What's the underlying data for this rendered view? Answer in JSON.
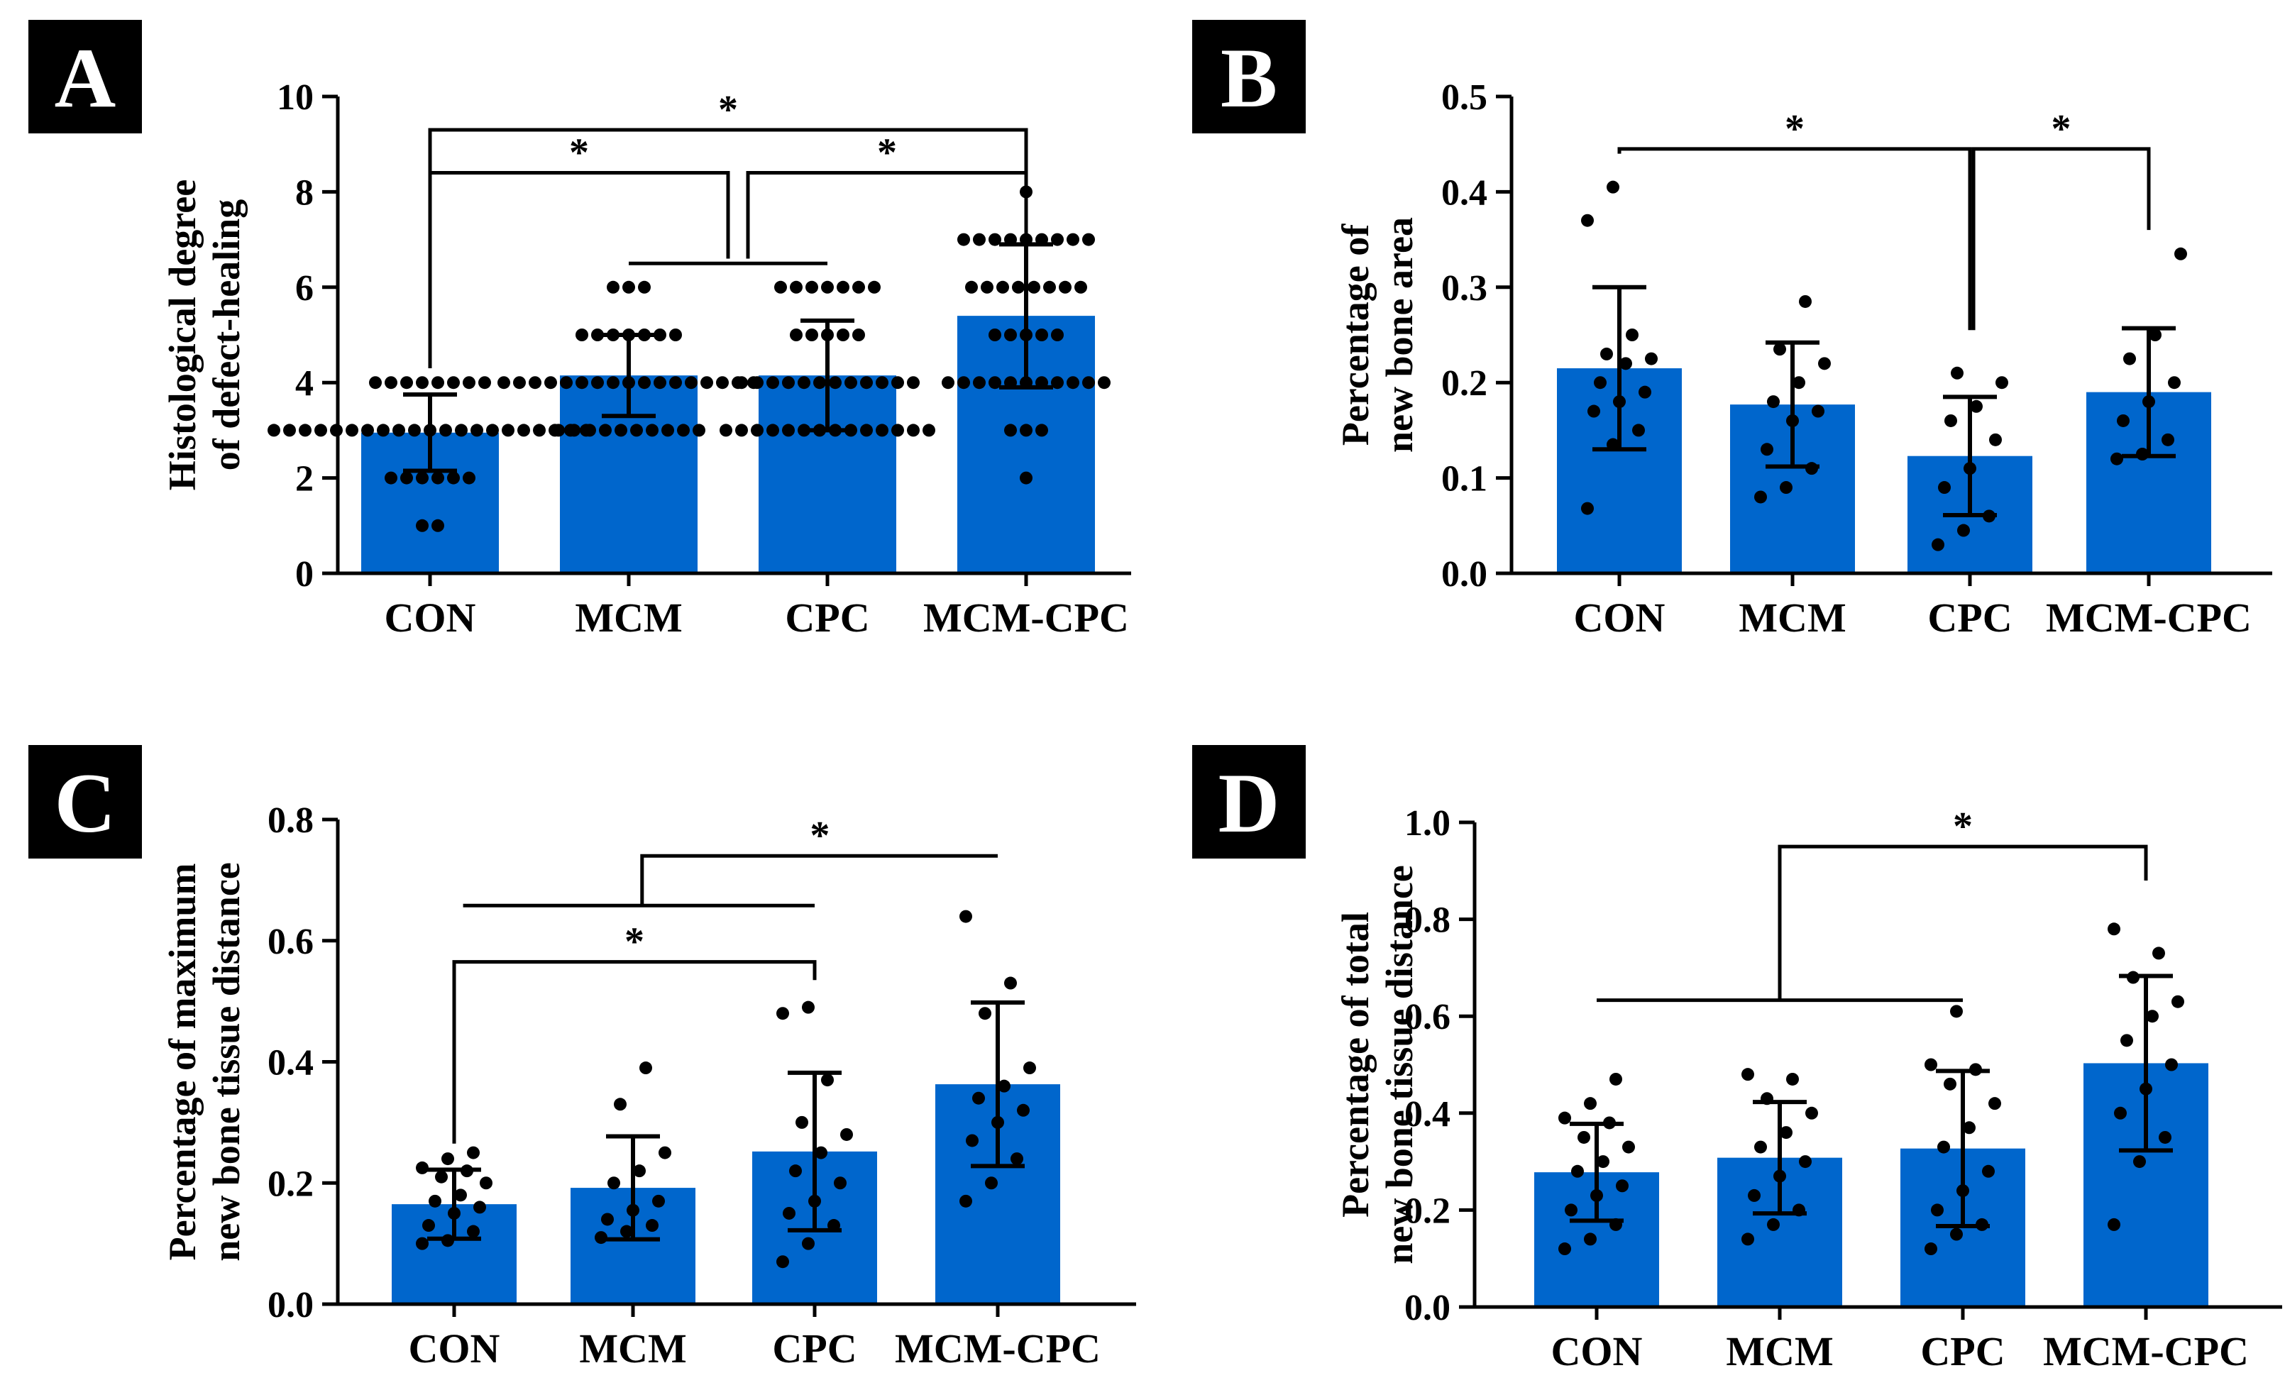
{
  "colors": {
    "bar": "#0066CC",
    "dot": "#000000",
    "axis": "#000000",
    "panel_bg": "#000000"
  },
  "chart_data": [
    {
      "type": "bar",
      "panel": "A",
      "categories": [
        "CON",
        "MCM",
        "CPC",
        "MCM-CPC"
      ],
      "ylabel": [
        "Histological degree",
        "of defect-healing"
      ],
      "ylim": [
        0,
        10
      ],
      "yticks": [
        0,
        2,
        4,
        6,
        8,
        10
      ],
      "tick_labels": [
        "0",
        "2",
        "4",
        "6",
        "8",
        "10"
      ],
      "means": [
        2.95,
        4.15,
        4.15,
        5.4
      ],
      "sd": [
        0.8,
        0.85,
        1.15,
        1.5
      ],
      "points": [
        [
          1,
          1,
          2,
          2,
          2,
          2,
          2,
          2,
          3,
          3,
          3,
          3,
          3,
          3,
          3,
          3,
          3,
          3,
          3,
          3,
          3,
          3,
          3,
          3,
          3,
          3,
          3,
          3,
          3,
          4,
          4,
          4,
          4,
          4,
          4,
          4,
          4
        ],
        [
          3,
          3,
          3,
          3,
          3,
          3,
          3,
          3,
          3,
          3,
          4,
          4,
          4,
          4,
          4,
          4,
          4,
          4,
          4,
          4,
          4,
          4,
          4,
          4,
          4,
          4,
          4,
          5,
          5,
          5,
          5,
          5,
          5,
          5,
          6,
          6,
          6
        ],
        [
          3,
          3,
          3,
          3,
          3,
          3,
          3,
          3,
          3,
          3,
          3,
          3,
          3,
          3,
          4,
          4,
          4,
          4,
          4,
          4,
          4,
          4,
          4,
          4,
          4,
          4,
          5,
          5,
          5,
          5,
          5,
          6,
          6,
          6,
          6,
          6,
          6,
          6
        ],
        [
          2,
          3,
          3,
          3,
          4,
          4,
          4,
          4,
          4,
          4,
          4,
          4,
          4,
          4,
          4,
          5,
          5,
          5,
          5,
          5,
          6,
          6,
          6,
          6,
          6,
          6,
          6,
          6,
          7,
          7,
          7,
          7,
          7,
          7,
          7,
          7,
          7,
          8
        ]
      ],
      "annotations": [
        {
          "type": "bracket",
          "x1": 0,
          "x2": 3,
          "y1": 4.3,
          "y2": 4.3,
          "top": 9.3,
          "label": "*"
        },
        {
          "type": "bracket",
          "x1": 0,
          "x2": 1.5,
          "y1": 4.3,
          "y2": 6.6,
          "top": 8.4,
          "label": "*"
        },
        {
          "type": "bracket",
          "x1": 1.6,
          "x2": 3,
          "y1": 6.6,
          "y2": 8.2,
          "top": 8.4,
          "label": "*"
        },
        {
          "type": "line",
          "x1": 1,
          "x2": 2,
          "y": 6.5
        }
      ]
    },
    {
      "type": "bar",
      "panel": "B",
      "categories": [
        "CON",
        "MCM",
        "CPC",
        "MCM-CPC"
      ],
      "ylabel": [
        "Percentage of",
        "new bone area"
      ],
      "ylim": [
        0,
        0.5
      ],
      "yticks": [
        0,
        0.1,
        0.2,
        0.3,
        0.4,
        0.5
      ],
      "tick_labels": [
        "0.0",
        "0.1",
        "0.2",
        "0.3",
        "0.4",
        "0.5"
      ],
      "means": [
        0.215,
        0.177,
        0.123,
        0.19
      ],
      "sd": [
        0.085,
        0.065,
        0.062,
        0.067
      ],
      "points": [
        [
          0.068,
          0.135,
          0.15,
          0.17,
          0.18,
          0.19,
          0.2,
          0.22,
          0.225,
          0.23,
          0.25,
          0.37,
          0.405
        ],
        [
          0.08,
          0.09,
          0.11,
          0.13,
          0.16,
          0.17,
          0.18,
          0.2,
          0.22,
          0.235,
          0.285
        ],
        [
          0.03,
          0.045,
          0.06,
          0.09,
          0.11,
          0.14,
          0.16,
          0.175,
          0.2,
          0.21
        ],
        [
          0.12,
          0.125,
          0.14,
          0.16,
          0.18,
          0.2,
          0.225,
          0.25,
          0.335
        ]
      ],
      "annotations": [
        {
          "type": "bracket",
          "x1": 0,
          "x2": 2,
          "y1": 0.44,
          "y2": 0.255,
          "top": 0.445,
          "label": "*"
        },
        {
          "type": "bracket",
          "x1": 2.02,
          "x2": 3,
          "y1": 0.255,
          "y2": 0.36,
          "top": 0.445,
          "label": "*"
        }
      ]
    },
    {
      "type": "bar",
      "panel": "C",
      "categories": [
        "CON",
        "MCM",
        "CPC",
        "MCM-CPC"
      ],
      "ylabel": [
        "Percentage of maximum",
        "new bone tissue distance"
      ],
      "ylim": [
        0,
        0.8
      ],
      "yticks": [
        0,
        0.2,
        0.4,
        0.6,
        0.8
      ],
      "tick_labels": [
        "0.0",
        "0.2",
        "0.4",
        "0.6",
        "0.8"
      ],
      "means": [
        0.165,
        0.192,
        0.252,
        0.363
      ],
      "sd": [
        0.057,
        0.085,
        0.13,
        0.135
      ],
      "points": [
        [
          0.1,
          0.105,
          0.12,
          0.13,
          0.15,
          0.16,
          0.17,
          0.18,
          0.2,
          0.21,
          0.22,
          0.225,
          0.24,
          0.25
        ],
        [
          0.11,
          0.12,
          0.13,
          0.14,
          0.155,
          0.17,
          0.2,
          0.22,
          0.25,
          0.33,
          0.39
        ],
        [
          0.07,
          0.1,
          0.13,
          0.15,
          0.17,
          0.2,
          0.22,
          0.25,
          0.28,
          0.3,
          0.37,
          0.48,
          0.49
        ],
        [
          0.17,
          0.2,
          0.24,
          0.27,
          0.3,
          0.32,
          0.34,
          0.36,
          0.39,
          0.48,
          0.53,
          0.64
        ]
      ],
      "annotations": [
        {
          "type": "bracket",
          "x1": 1.05,
          "x2": 3,
          "y1": 0.658,
          "y2": 0.74,
          "top": 0.74,
          "label": "*"
        },
        {
          "type": "line",
          "x1": 0.05,
          "x2": 2,
          "y": 0.658
        },
        {
          "type": "bracket",
          "x1": 0,
          "x2": 2,
          "y1": 0.265,
          "y2": 0.535,
          "top": 0.565,
          "label": "*"
        }
      ]
    },
    {
      "type": "bar",
      "panel": "D",
      "categories": [
        "CON",
        "MCM",
        "CPC",
        "MCM-CPC"
      ],
      "ylabel": [
        "Percentage of total",
        "new bone tissue distance"
      ],
      "ylim": [
        0,
        1.0
      ],
      "yticks": [
        0,
        0.2,
        0.4,
        0.6,
        0.8,
        1.0
      ],
      "tick_labels": [
        "0.0",
        "0.2",
        "0.4",
        "0.6",
        "0.8",
        "1.0"
      ],
      "means": [
        0.278,
        0.308,
        0.327,
        0.503
      ],
      "sd": [
        0.1,
        0.115,
        0.16,
        0.18
      ],
      "points": [
        [
          0.12,
          0.14,
          0.17,
          0.2,
          0.23,
          0.25,
          0.28,
          0.3,
          0.33,
          0.35,
          0.38,
          0.39,
          0.42,
          0.47
        ],
        [
          0.14,
          0.17,
          0.2,
          0.23,
          0.27,
          0.3,
          0.33,
          0.36,
          0.4,
          0.43,
          0.47,
          0.48
        ],
        [
          0.12,
          0.15,
          0.17,
          0.2,
          0.24,
          0.28,
          0.33,
          0.37,
          0.42,
          0.46,
          0.49,
          0.5,
          0.61
        ],
        [
          0.17,
          0.3,
          0.35,
          0.4,
          0.45,
          0.5,
          0.55,
          0.6,
          0.63,
          0.68,
          0.73,
          0.78
        ]
      ],
      "annotations": [
        {
          "type": "bracket",
          "x1": 1,
          "x2": 3,
          "y1": 0.633,
          "y2": 0.88,
          "top": 0.95,
          "label": "*"
        },
        {
          "type": "line",
          "x1": 0,
          "x2": 2,
          "y": 0.633
        }
      ]
    }
  ]
}
